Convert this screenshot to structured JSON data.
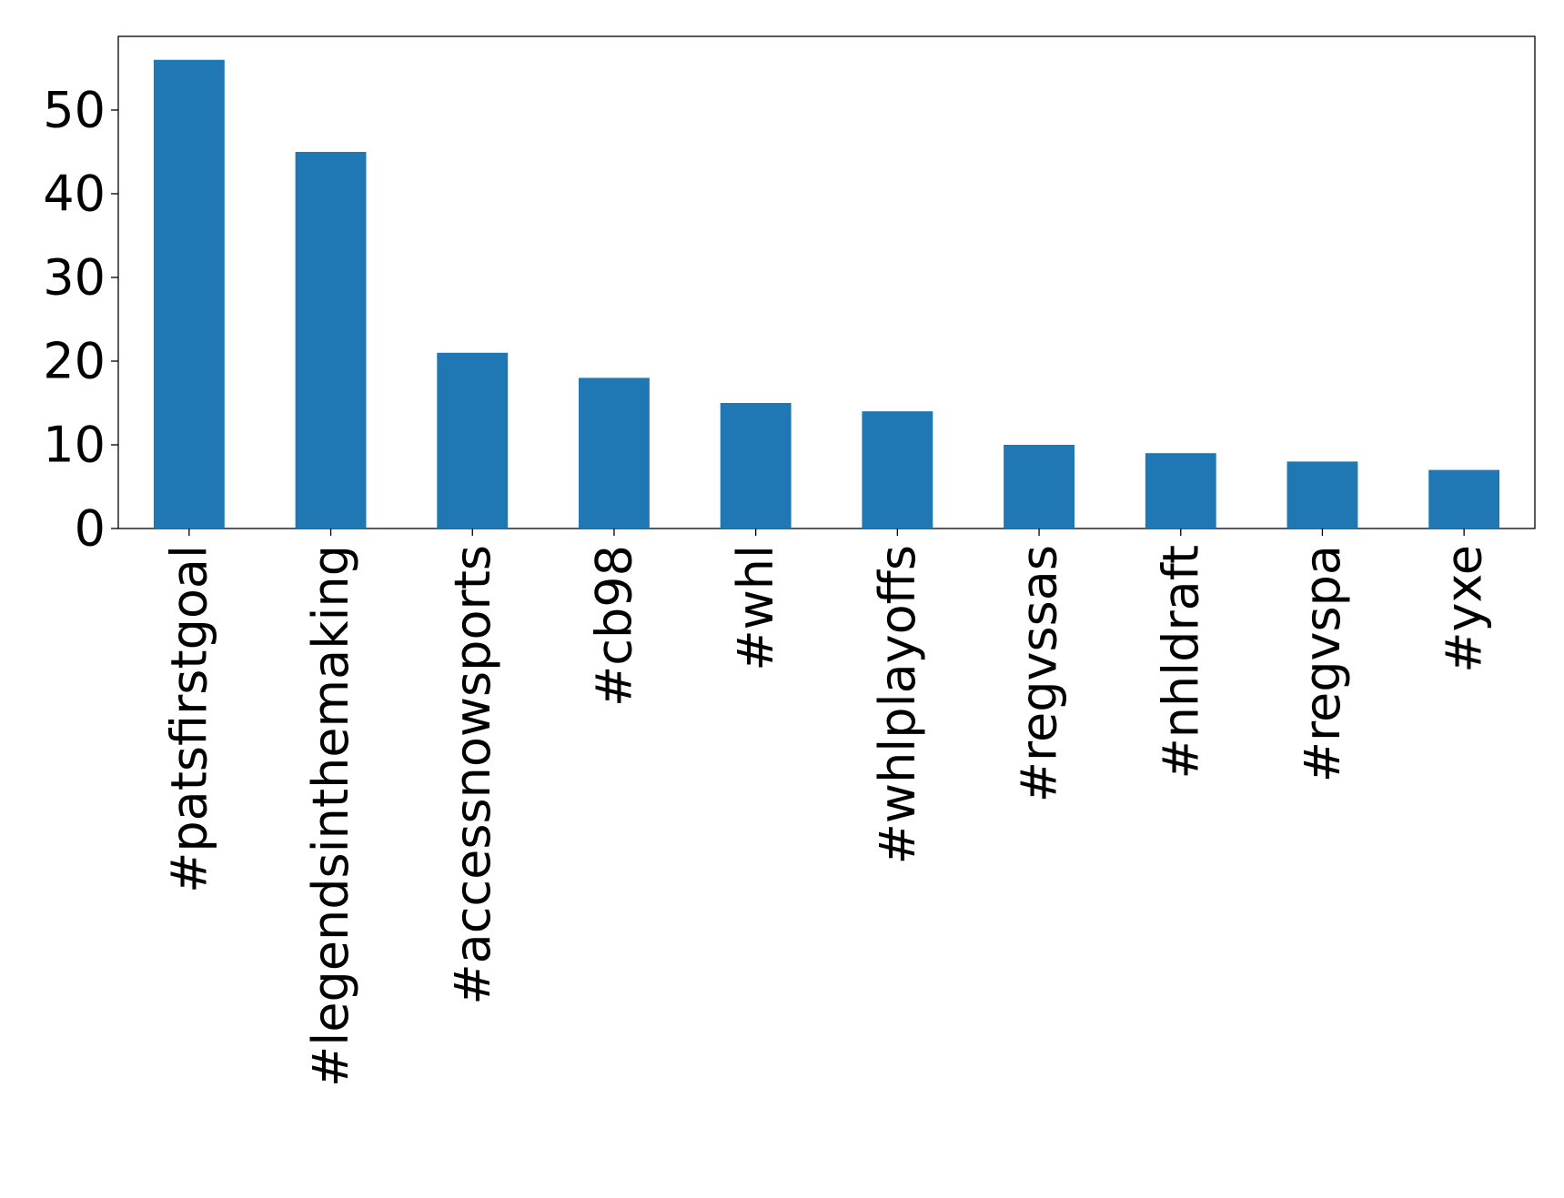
{
  "chart_data": {
    "type": "bar",
    "categories": [
      "#patsfirstgoal",
      "#legendsinthemaking",
      "#accessnowsports",
      "#cb98",
      "#whl",
      "#whlplayoffs",
      "#regvssas",
      "#nhldraft",
      "#regvspa",
      "#yxe"
    ],
    "values": [
      56,
      45,
      21,
      18,
      15,
      14,
      10,
      9,
      8,
      7
    ],
    "color": "#1f77b4",
    "ylim": [
      0,
      58.8
    ],
    "yticks": [
      0,
      10,
      20,
      30,
      40,
      50
    ],
    "grid": false
  }
}
